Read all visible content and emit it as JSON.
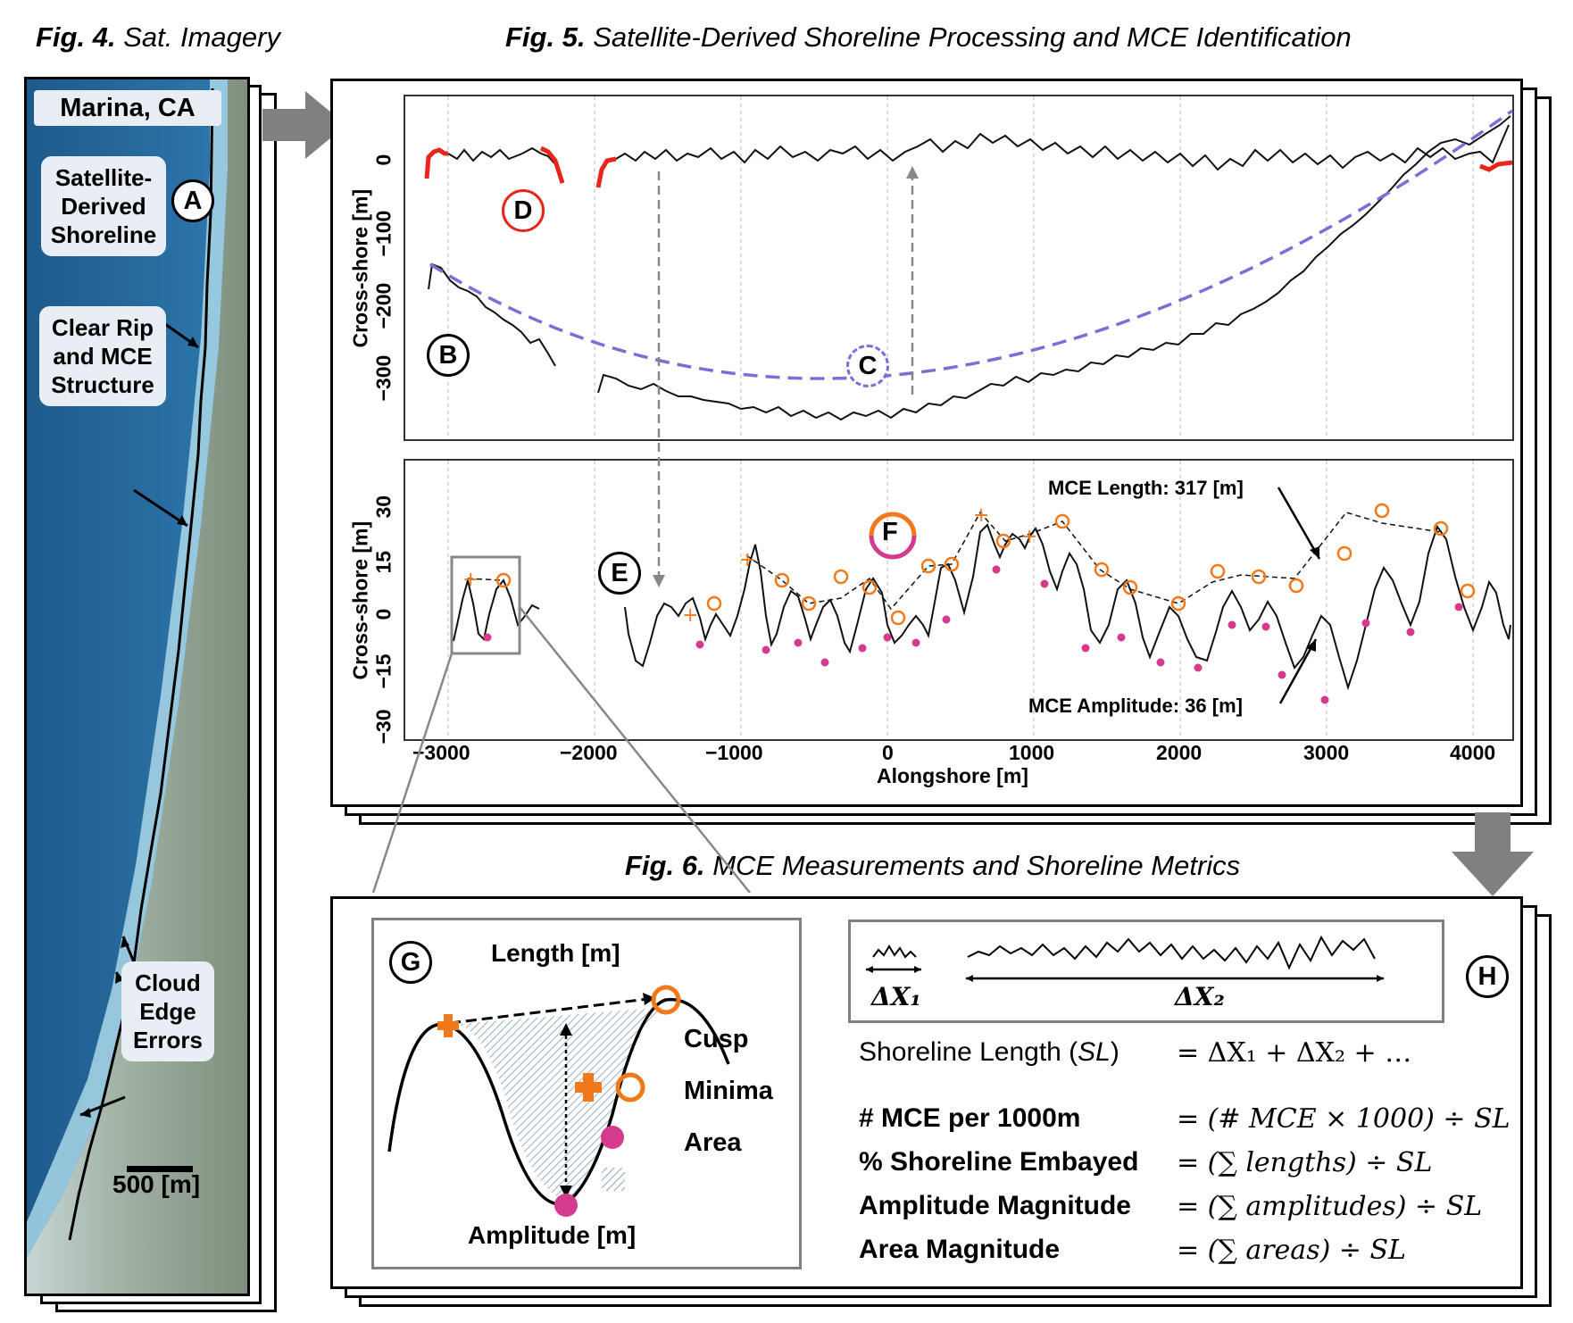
{
  "fig4": {
    "num": "Fig. 4.",
    "title": "Sat. Imagery",
    "location": "Marina, CA",
    "callout_a": "Satellite-Derived Shoreline",
    "callout_rip": "Clear Rip and MCE Structure",
    "callout_cloud": "Cloud Edge Errors",
    "label_a": "A",
    "scale_label": "500 [m]"
  },
  "fig5": {
    "num": "Fig. 5.",
    "title": "Satellite-Derived Shoreline Processing and MCE Identification",
    "ylabel_top": "Cross-shore [m]",
    "ylabel_bottom": "Cross-shore [m]",
    "xlabel": "Alongshore [m]",
    "yticks_top": [
      "0",
      "−100",
      "−200",
      "−300"
    ],
    "yticks_bottom": [
      "30",
      "15",
      "0",
      "−15",
      "−30"
    ],
    "xticks": [
      "−3000",
      "−2000",
      "−1000",
      "0",
      "1000",
      "2000",
      "3000",
      "4000"
    ],
    "label_b": "B",
    "label_c": "C",
    "label_d": "D",
    "label_e": "E",
    "label_f": "F",
    "mce_length": "MCE Length: 317 [m]",
    "mce_amplitude": "MCE Amplitude: 36 [m]",
    "colors": {
      "shoreline": "#111111",
      "error": "#e8241c",
      "fit": "#7b6fd6",
      "cusp": "#f07a1a",
      "minima": "#d63a8c"
    }
  },
  "fig6": {
    "num": "Fig. 6.",
    "title": "MCE Measurements and Shoreline Metrics",
    "label_g": "G",
    "label_h": "H",
    "length_label": "Length [m]",
    "amplitude_label": "Amplitude [m]",
    "legend": {
      "cusp": "Cusp",
      "minima": "Minima",
      "area": "Area"
    },
    "dx1": "ΔX₁",
    "dx2": "ΔX₂",
    "metrics": [
      {
        "name": "Shoreline Length (",
        "name_ital": "SL",
        "name_end": ")",
        "eq": "= ΔX₁ + ΔX₂ +  …",
        "bold": false
      },
      {
        "name": "# MCE per 1000m",
        "eq": "= (# MCE  × 1000)  ÷ SL",
        "bold": true
      },
      {
        "name": "% Shoreline Embayed",
        "eq": "= (∑ lengths)  ÷ SL",
        "bold": true
      },
      {
        "name": "Amplitude Magnitude",
        "eq": "= (∑ amplitudes)  ÷ SL",
        "bold": true
      },
      {
        "name": "Area Magnitude",
        "eq": "= (∑ areas)  ÷ SL",
        "bold": true
      }
    ]
  }
}
